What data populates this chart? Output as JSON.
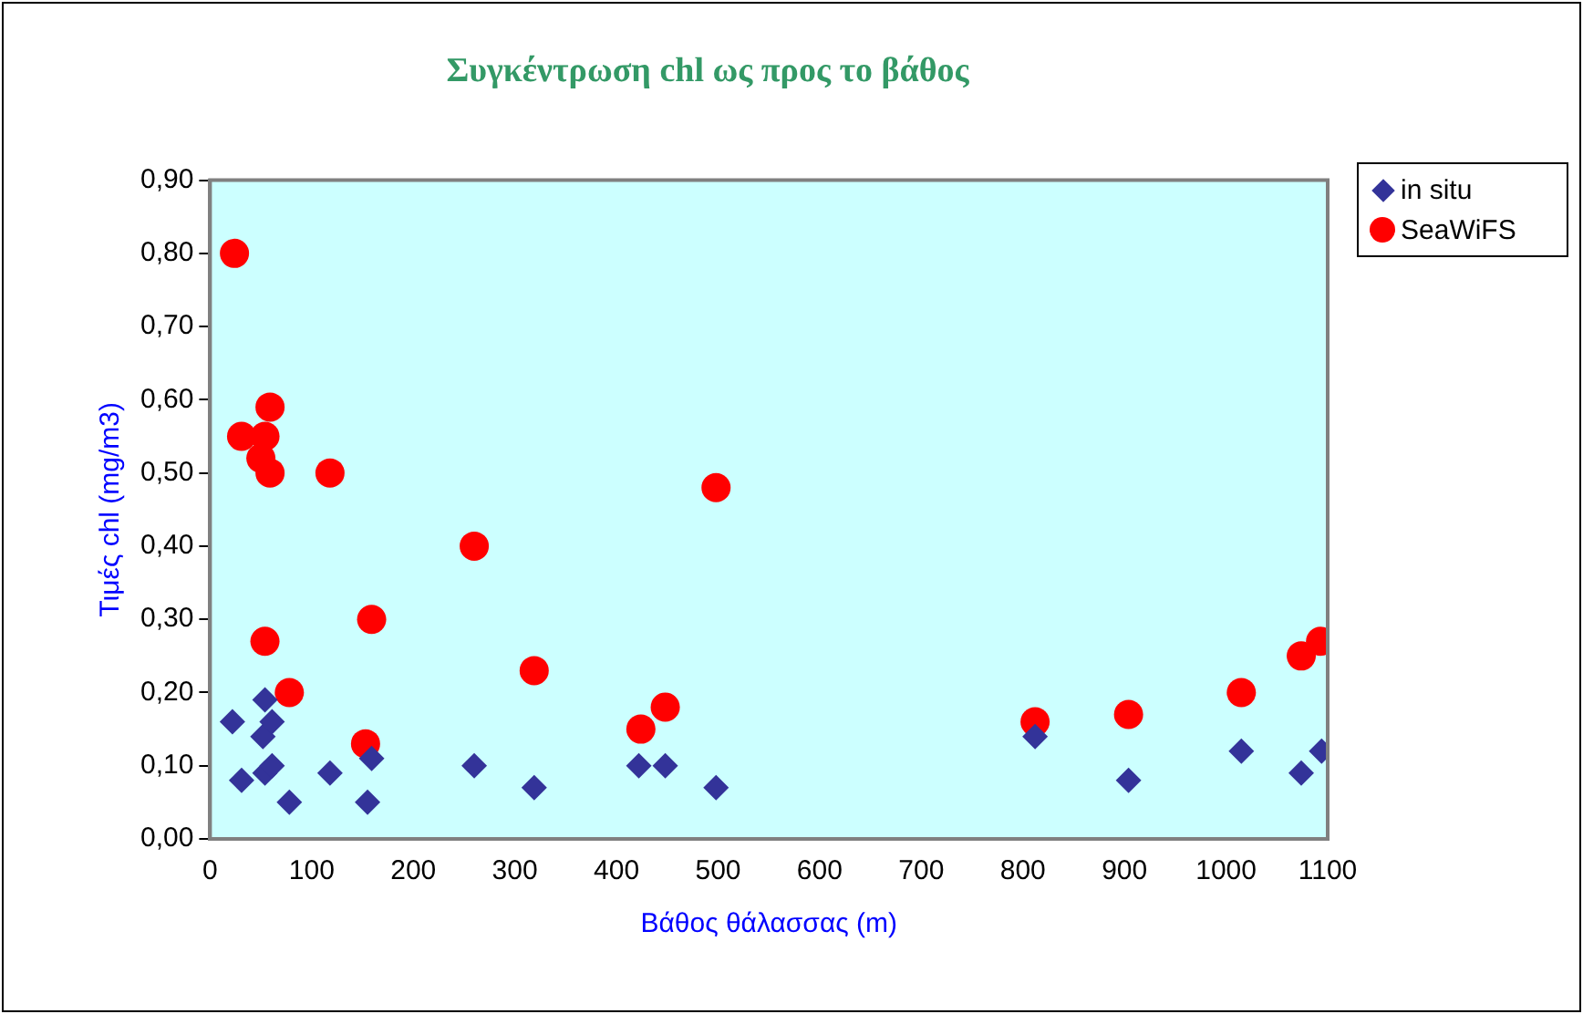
{
  "chart_data": {
    "type": "scatter",
    "title": "Συγκέντρωση chl ως προς το βάθος",
    "xlabel": "Βάθος θάλασσας (m)",
    "ylabel": "Τιμές chl (mg/m3)",
    "series": [
      {
        "name": "in situ",
        "color": "#333399",
        "marker": "diamond",
        "x": [
          22,
          31,
          52,
          54,
          61,
          54,
          61,
          78,
          118,
          155,
          159,
          260,
          319,
          422,
          448,
          498,
          812,
          904,
          1015,
          1074,
          1094
        ],
        "values": [
          0.16,
          0.08,
          0.14,
          0.19,
          0.16,
          0.09,
          0.1,
          0.05,
          0.09,
          0.05,
          0.11,
          0.1,
          0.07,
          0.1,
          0.1,
          0.07,
          0.14,
          0.08,
          0.12,
          0.09,
          0.12
        ]
      },
      {
        "name": "SeaWiFS",
        "color": "#ff0000",
        "marker": "circle",
        "x": [
          24,
          31,
          54,
          50,
          59,
          59,
          118,
          260,
          159,
          54,
          78,
          153,
          319,
          424,
          448,
          498,
          812,
          904,
          1015,
          1074,
          1093
        ],
        "values": [
          0.8,
          0.55,
          0.55,
          0.52,
          0.59,
          0.5,
          0.5,
          0.4,
          0.3,
          0.27,
          0.2,
          0.13,
          0.23,
          0.15,
          0.18,
          0.48,
          0.16,
          0.17,
          0.2,
          0.25,
          0.27
        ]
      }
    ],
    "xlim": [
      0,
      1100
    ],
    "xticks": [
      0,
      100,
      200,
      300,
      400,
      500,
      600,
      700,
      800,
      900,
      1000,
      1100
    ],
    "ylim": [
      0,
      0.9
    ],
    "yticks": [
      {
        "value": 0,
        "label": "0,00"
      },
      {
        "value": 0.1,
        "label": "0,10"
      },
      {
        "value": 0.2,
        "label": "0,20"
      },
      {
        "value": 0.3,
        "label": "0,30"
      },
      {
        "value": 0.4,
        "label": "0,40"
      },
      {
        "value": 0.5,
        "label": "0,50"
      },
      {
        "value": 0.6,
        "label": "0,60"
      },
      {
        "value": 0.7,
        "label": "0,70"
      },
      {
        "value": 0.8,
        "label": "0,80"
      },
      {
        "value": 0.9,
        "label": "0,90"
      }
    ],
    "grid": false,
    "legend": "top right"
  }
}
